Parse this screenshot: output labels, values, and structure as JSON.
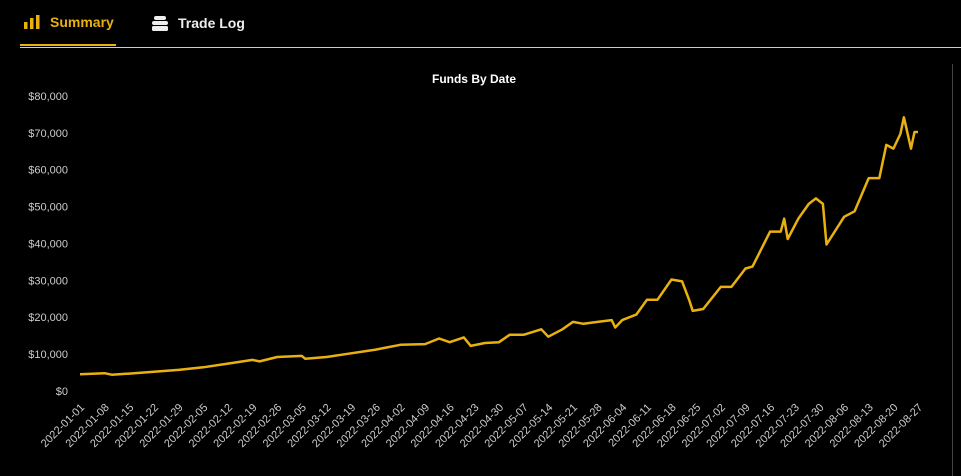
{
  "tabs": [
    {
      "label": "Summary",
      "active": true
    },
    {
      "label": "Trade Log",
      "active": false
    }
  ],
  "chart_data": {
    "type": "line",
    "title": "Funds By Date",
    "x": [
      "2022-01-01",
      "2022-01-08",
      "2022-01-10",
      "2022-01-15",
      "2022-01-22",
      "2022-01-29",
      "2022-02-05",
      "2022-02-12",
      "2022-02-19",
      "2022-02-21",
      "2022-02-26",
      "2022-03-05",
      "2022-03-06",
      "2022-03-12",
      "2022-03-19",
      "2022-03-26",
      "2022-04-02",
      "2022-04-09",
      "2022-04-13",
      "2022-04-16",
      "2022-04-20",
      "2022-04-22",
      "2022-04-26",
      "2022-04-30",
      "2022-05-03",
      "2022-05-07",
      "2022-05-12",
      "2022-05-14",
      "2022-05-18",
      "2022-05-21",
      "2022-05-24",
      "2022-05-28",
      "2022-06-01",
      "2022-06-02",
      "2022-06-04",
      "2022-06-08",
      "2022-06-11",
      "2022-06-14",
      "2022-06-18",
      "2022-06-21",
      "2022-06-23",
      "2022-06-24",
      "2022-06-27",
      "2022-07-02",
      "2022-07-05",
      "2022-07-09",
      "2022-07-11",
      "2022-07-16",
      "2022-07-19",
      "2022-07-20",
      "2022-07-21",
      "2022-07-24",
      "2022-07-27",
      "2022-07-29",
      "2022-07-31",
      "2022-08-01",
      "2022-08-06",
      "2022-08-09",
      "2022-08-13",
      "2022-08-16",
      "2022-08-18",
      "2022-08-20",
      "2022-08-22",
      "2022-08-23",
      "2022-08-25",
      "2022-08-26",
      "2022-08-27"
    ],
    "series": [
      {
        "name": "Funds",
        "color": "#e9b10f",
        "values": [
          4800,
          5100,
          4700,
          5000,
          5500,
          6000,
          6700,
          7700,
          8700,
          8300,
          9500,
          9800,
          9000,
          9500,
          10500,
          11500,
          12800,
          13000,
          14500,
          13500,
          14800,
          12500,
          13300,
          13500,
          15500,
          15500,
          17000,
          15000,
          17000,
          19000,
          18500,
          19000,
          19500,
          17500,
          19500,
          21000,
          25000,
          25000,
          30500,
          30000,
          25000,
          22000,
          22500,
          28500,
          28500,
          33500,
          34000,
          43500,
          43500,
          47000,
          41500,
          47000,
          51000,
          52500,
          51000,
          40000,
          47500,
          49000,
          58000,
          58000,
          67000,
          66000,
          70000,
          74500,
          66000,
          70500,
          70500
        ]
      }
    ],
    "xlim": [
      "2022-01-01",
      "2022-08-27"
    ],
    "xticks": [
      "2022-01-01",
      "2022-01-08",
      "2022-01-15",
      "2022-01-22",
      "2022-01-29",
      "2022-02-05",
      "2022-02-12",
      "2022-02-19",
      "2022-02-26",
      "2022-03-05",
      "2022-03-12",
      "2022-03-19",
      "2022-03-26",
      "2022-04-02",
      "2022-04-09",
      "2022-04-16",
      "2022-04-23",
      "2022-04-30",
      "2022-05-07",
      "2022-05-14",
      "2022-05-21",
      "2022-05-28",
      "2022-06-04",
      "2022-06-11",
      "2022-06-18",
      "2022-06-25",
      "2022-07-02",
      "2022-07-09",
      "2022-07-16",
      "2022-07-23",
      "2022-07-30",
      "2022-08-06",
      "2022-08-13",
      "2022-08-20",
      "2022-08-27"
    ],
    "ylim": [
      0,
      80000
    ],
    "yticks": [
      {
        "value": 0,
        "label": "$0"
      },
      {
        "value": 10000,
        "label": "$10,000"
      },
      {
        "value": 20000,
        "label": "$20,000"
      },
      {
        "value": 30000,
        "label": "$30,000"
      },
      {
        "value": 40000,
        "label": "$40,000"
      },
      {
        "value": 50000,
        "label": "$50,000"
      },
      {
        "value": 60000,
        "label": "$60,000"
      },
      {
        "value": 70000,
        "label": "$70,000"
      },
      {
        "value": 80000,
        "label": "$80,000"
      }
    ]
  }
}
